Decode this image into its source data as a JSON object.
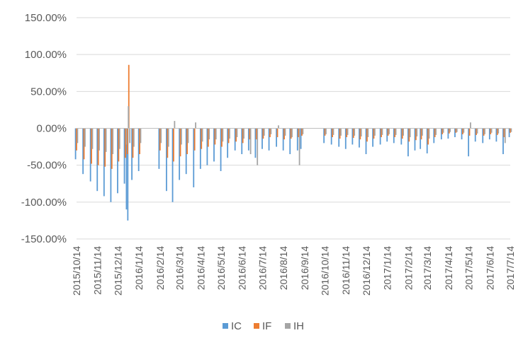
{
  "chart_data": {
    "type": "bar",
    "stacked": false,
    "title": "",
    "xlabel": "",
    "ylabel": "",
    "ylim": [
      -150,
      150
    ],
    "y_unit": "%",
    "y_ticks": [
      150,
      100,
      50,
      0,
      -50,
      -100,
      -150
    ],
    "y_tick_labels": [
      "150.00%",
      "100.00%",
      "50.00%",
      "0.00%",
      "-50.00%",
      "-100.00%",
      "-150.00%"
    ],
    "grid": "horizontal",
    "legend_position": "bottom",
    "x_range": [
      "2015-10-14",
      "2017-07-14"
    ],
    "x_tick_labels": [
      "2015/10/14",
      "2015/11/14",
      "2015/12/14",
      "2016/1/14",
      "2016/2/14",
      "2016/3/14",
      "2016/4/14",
      "2016/5/14",
      "2016/6/14",
      "2016/7/14",
      "2016/8/14",
      "2016/9/14",
      "2016/10/14",
      "2016/11/14",
      "2016/12/14",
      "2017/1/14",
      "2017/2/14",
      "2017/3/14",
      "2017/4/14",
      "2017/5/14",
      "2017/6/14",
      "2017/7/14"
    ],
    "x_tick_dates": [
      "2015-10-14",
      "2015-11-14",
      "2015-12-14",
      "2016-01-14",
      "2016-02-14",
      "2016-03-14",
      "2016-04-14",
      "2016-05-14",
      "2016-06-14",
      "2016-07-14",
      "2016-08-14",
      "2016-09-14",
      "2016-10-14",
      "2016-11-14",
      "2016-12-14",
      "2017-01-14",
      "2017-02-14",
      "2017-03-14",
      "2017-04-14",
      "2017-05-14",
      "2017-06-14",
      "2017-07-14"
    ],
    "series": [
      {
        "name": "IC",
        "color": "#5B9BD5",
        "points": [
          [
            "2015-10-14",
            -42
          ],
          [
            "2015-10-25",
            -62
          ],
          [
            "2015-11-05",
            -72
          ],
          [
            "2015-11-15",
            -85
          ],
          [
            "2015-11-25",
            -92
          ],
          [
            "2015-12-05",
            -100
          ],
          [
            "2015-12-15",
            -88
          ],
          [
            "2015-12-25",
            -75
          ],
          [
            "2015-12-28",
            -110
          ],
          [
            "2015-12-30",
            -125
          ],
          [
            "2016-01-05",
            -70
          ],
          [
            "2016-01-15",
            -58
          ],
          [
            "2016-02-14",
            -55
          ],
          [
            "2016-02-25",
            -85
          ],
          [
            "2016-03-05",
            -100
          ],
          [
            "2016-03-15",
            -70
          ],
          [
            "2016-03-25",
            -62
          ],
          [
            "2016-04-05",
            -80
          ],
          [
            "2016-04-15",
            -55
          ],
          [
            "2016-04-25",
            -50
          ],
          [
            "2016-05-05",
            -45
          ],
          [
            "2016-05-15",
            -58
          ],
          [
            "2016-05-25",
            -40
          ],
          [
            "2016-06-05",
            -30
          ],
          [
            "2016-06-15",
            -35
          ],
          [
            "2016-06-25",
            -30
          ],
          [
            "2016-07-05",
            -40
          ],
          [
            "2016-07-15",
            -28
          ],
          [
            "2016-07-25",
            -30
          ],
          [
            "2016-08-05",
            -25
          ],
          [
            "2016-08-15",
            -30
          ],
          [
            "2016-08-25",
            -35
          ],
          [
            "2016-09-05",
            -30
          ],
          [
            "2016-09-10",
            -28
          ],
          [
            "2016-10-14",
            -20
          ],
          [
            "2016-10-25",
            -22
          ],
          [
            "2016-11-05",
            -25
          ],
          [
            "2016-11-15",
            -28
          ],
          [
            "2016-11-25",
            -22
          ],
          [
            "2016-12-05",
            -26
          ],
          [
            "2016-12-15",
            -35
          ],
          [
            "2016-12-25",
            -25
          ],
          [
            "2017-01-05",
            -22
          ],
          [
            "2017-01-15",
            -18
          ],
          [
            "2017-01-25",
            -20
          ],
          [
            "2017-02-05",
            -22
          ],
          [
            "2017-02-15",
            -38
          ],
          [
            "2017-02-25",
            -30
          ],
          [
            "2017-03-05",
            -28
          ],
          [
            "2017-03-15",
            -34
          ],
          [
            "2017-03-25",
            -20
          ],
          [
            "2017-04-05",
            -15
          ],
          [
            "2017-04-15",
            -14
          ],
          [
            "2017-04-25",
            -12
          ],
          [
            "2017-05-05",
            -15
          ],
          [
            "2017-05-15",
            -38
          ],
          [
            "2017-05-25",
            -18
          ],
          [
            "2017-06-05",
            -20
          ],
          [
            "2017-06-15",
            -15
          ],
          [
            "2017-06-25",
            -18
          ],
          [
            "2017-07-05",
            -35
          ],
          [
            "2017-07-14",
            -12
          ]
        ]
      },
      {
        "name": "IF",
        "color": "#ED7D31",
        "points": [
          [
            "2015-10-14",
            -30
          ],
          [
            "2015-10-25",
            -42
          ],
          [
            "2015-11-05",
            -48
          ],
          [
            "2015-11-15",
            -50
          ],
          [
            "2015-11-25",
            -52
          ],
          [
            "2015-12-05",
            -55
          ],
          [
            "2015-12-15",
            -45
          ],
          [
            "2015-12-25",
            -40
          ],
          [
            "2015-12-28",
            -35
          ],
          [
            "2015-12-30",
            86
          ],
          [
            "2016-01-05",
            -40
          ],
          [
            "2016-01-15",
            -35
          ],
          [
            "2016-02-14",
            -30
          ],
          [
            "2016-02-25",
            -40
          ],
          [
            "2016-03-05",
            -45
          ],
          [
            "2016-03-15",
            -38
          ],
          [
            "2016-03-25",
            -35
          ],
          [
            "2016-04-05",
            -30
          ],
          [
            "2016-04-15",
            -28
          ],
          [
            "2016-04-25",
            -25
          ],
          [
            "2016-05-05",
            -22
          ],
          [
            "2016-05-15",
            -25
          ],
          [
            "2016-05-25",
            -20
          ],
          [
            "2016-06-05",
            -18
          ],
          [
            "2016-06-15",
            -20
          ],
          [
            "2016-06-25",
            -15
          ],
          [
            "2016-07-05",
            -15
          ],
          [
            "2016-07-15",
            -14
          ],
          [
            "2016-07-25",
            -12
          ],
          [
            "2016-08-05",
            -12
          ],
          [
            "2016-08-15",
            -15
          ],
          [
            "2016-08-25",
            -14
          ],
          [
            "2016-09-05",
            -12
          ],
          [
            "2016-09-10",
            -10
          ],
          [
            "2016-10-14",
            -10
          ],
          [
            "2016-10-25",
            -12
          ],
          [
            "2016-11-05",
            -14
          ],
          [
            "2016-11-15",
            -12
          ],
          [
            "2016-11-25",
            -13
          ],
          [
            "2016-12-05",
            -15
          ],
          [
            "2016-12-15",
            -18
          ],
          [
            "2016-12-25",
            -14
          ],
          [
            "2017-01-05",
            -12
          ],
          [
            "2017-01-15",
            -10
          ],
          [
            "2017-01-25",
            -12
          ],
          [
            "2017-02-05",
            -14
          ],
          [
            "2017-02-15",
            -18
          ],
          [
            "2017-02-25",
            -16
          ],
          [
            "2017-03-05",
            -15
          ],
          [
            "2017-03-15",
            -22
          ],
          [
            "2017-03-25",
            -12
          ],
          [
            "2017-04-05",
            -8
          ],
          [
            "2017-04-15",
            -7
          ],
          [
            "2017-04-25",
            -6
          ],
          [
            "2017-05-05",
            -8
          ],
          [
            "2017-05-15",
            -10
          ],
          [
            "2017-05-25",
            -9
          ],
          [
            "2017-06-05",
            -10
          ],
          [
            "2017-06-15",
            -8
          ],
          [
            "2017-06-25",
            -9
          ],
          [
            "2017-07-05",
            -12
          ],
          [
            "2017-07-14",
            -6
          ]
        ]
      },
      {
        "name": "IH",
        "color": "#A5A5A5",
        "points": [
          [
            "2015-10-14",
            -20
          ],
          [
            "2015-10-25",
            -25
          ],
          [
            "2015-11-05",
            -28
          ],
          [
            "2015-11-15",
            -30
          ],
          [
            "2015-11-25",
            -32
          ],
          [
            "2015-12-05",
            -35
          ],
          [
            "2015-12-15",
            -28
          ],
          [
            "2015-12-25",
            -22
          ],
          [
            "2015-12-28",
            30
          ],
          [
            "2015-12-30",
            -20
          ],
          [
            "2016-01-05",
            -25
          ],
          [
            "2016-01-15",
            -20
          ],
          [
            "2016-02-14",
            -20
          ],
          [
            "2016-02-25",
            -25
          ],
          [
            "2016-03-05",
            10
          ],
          [
            "2016-03-15",
            -22
          ],
          [
            "2016-03-25",
            -20
          ],
          [
            "2016-04-05",
            8
          ],
          [
            "2016-04-15",
            -18
          ],
          [
            "2016-04-25",
            -15
          ],
          [
            "2016-05-05",
            -15
          ],
          [
            "2016-05-15",
            -18
          ],
          [
            "2016-05-25",
            -14
          ],
          [
            "2016-06-05",
            -12
          ],
          [
            "2016-06-15",
            -14
          ],
          [
            "2016-06-25",
            -35
          ],
          [
            "2016-07-05",
            -50
          ],
          [
            "2016-07-15",
            -10
          ],
          [
            "2016-07-25",
            -8
          ],
          [
            "2016-08-05",
            4
          ],
          [
            "2016-08-15",
            -10
          ],
          [
            "2016-08-25",
            -12
          ],
          [
            "2016-09-05",
            -50
          ],
          [
            "2016-09-10",
            -8
          ],
          [
            "2016-10-14",
            -8
          ],
          [
            "2016-10-25",
            -9
          ],
          [
            "2016-11-05",
            -10
          ],
          [
            "2016-11-15",
            -9
          ],
          [
            "2016-11-25",
            -10
          ],
          [
            "2016-12-05",
            -11
          ],
          [
            "2016-12-15",
            -12
          ],
          [
            "2016-12-25",
            -10
          ],
          [
            "2017-01-05",
            -9
          ],
          [
            "2017-01-15",
            -8
          ],
          [
            "2017-01-25",
            -9
          ],
          [
            "2017-02-05",
            -10
          ],
          [
            "2017-02-15",
            -12
          ],
          [
            "2017-02-25",
            -11
          ],
          [
            "2017-03-05",
            -10
          ],
          [
            "2017-03-15",
            -14
          ],
          [
            "2017-03-25",
            -9
          ],
          [
            "2017-04-05",
            -6
          ],
          [
            "2017-04-15",
            -5
          ],
          [
            "2017-04-25",
            -5
          ],
          [
            "2017-05-05",
            -6
          ],
          [
            "2017-05-15",
            8
          ],
          [
            "2017-05-25",
            -7
          ],
          [
            "2017-06-05",
            -8
          ],
          [
            "2017-06-15",
            -6
          ],
          [
            "2017-06-25",
            -7
          ],
          [
            "2017-07-05",
            -20
          ],
          [
            "2017-07-14",
            -5
          ]
        ]
      }
    ]
  }
}
